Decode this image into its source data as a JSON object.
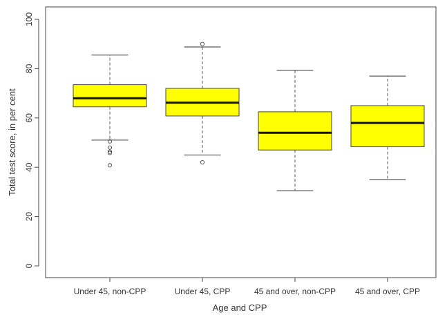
{
  "chart_data": {
    "type": "boxplot",
    "title": "",
    "xlabel": "Age and CPP",
    "ylabel": "Total test score, in per cent",
    "ylim": [
      0,
      100
    ],
    "yticks": [
      0,
      20,
      40,
      60,
      80,
      100
    ],
    "grid": false,
    "box_color": "#ffff00",
    "categories": [
      "Under 45, non-CPP",
      "Under 45, CPP",
      "45 and over, non-CPP",
      "45 and over, CPP"
    ],
    "boxes": [
      {
        "category": "Under 45, non-CPP",
        "whisker_low": 51,
        "q1": 64.5,
        "median": 68,
        "q3": 73.5,
        "whisker_high": 85.5,
        "outliers": [
          50.5,
          48,
          46.3,
          45.8,
          40.8
        ]
      },
      {
        "category": "Under 45, CPP",
        "whisker_low": 45,
        "q1": 60.8,
        "median": 66.2,
        "q3": 72,
        "whisker_high": 88.8,
        "outliers": [
          90,
          42
        ]
      },
      {
        "category": "45 and over, non-CPP",
        "whisker_low": 30.5,
        "q1": 47,
        "median": 54,
        "q3": 62.5,
        "whisker_high": 79.3,
        "outliers": []
      },
      {
        "category": "45 and over, CPP",
        "whisker_low": 35,
        "q1": 48.3,
        "median": 58,
        "q3": 65,
        "whisker_high": 77,
        "outliers": []
      }
    ]
  }
}
